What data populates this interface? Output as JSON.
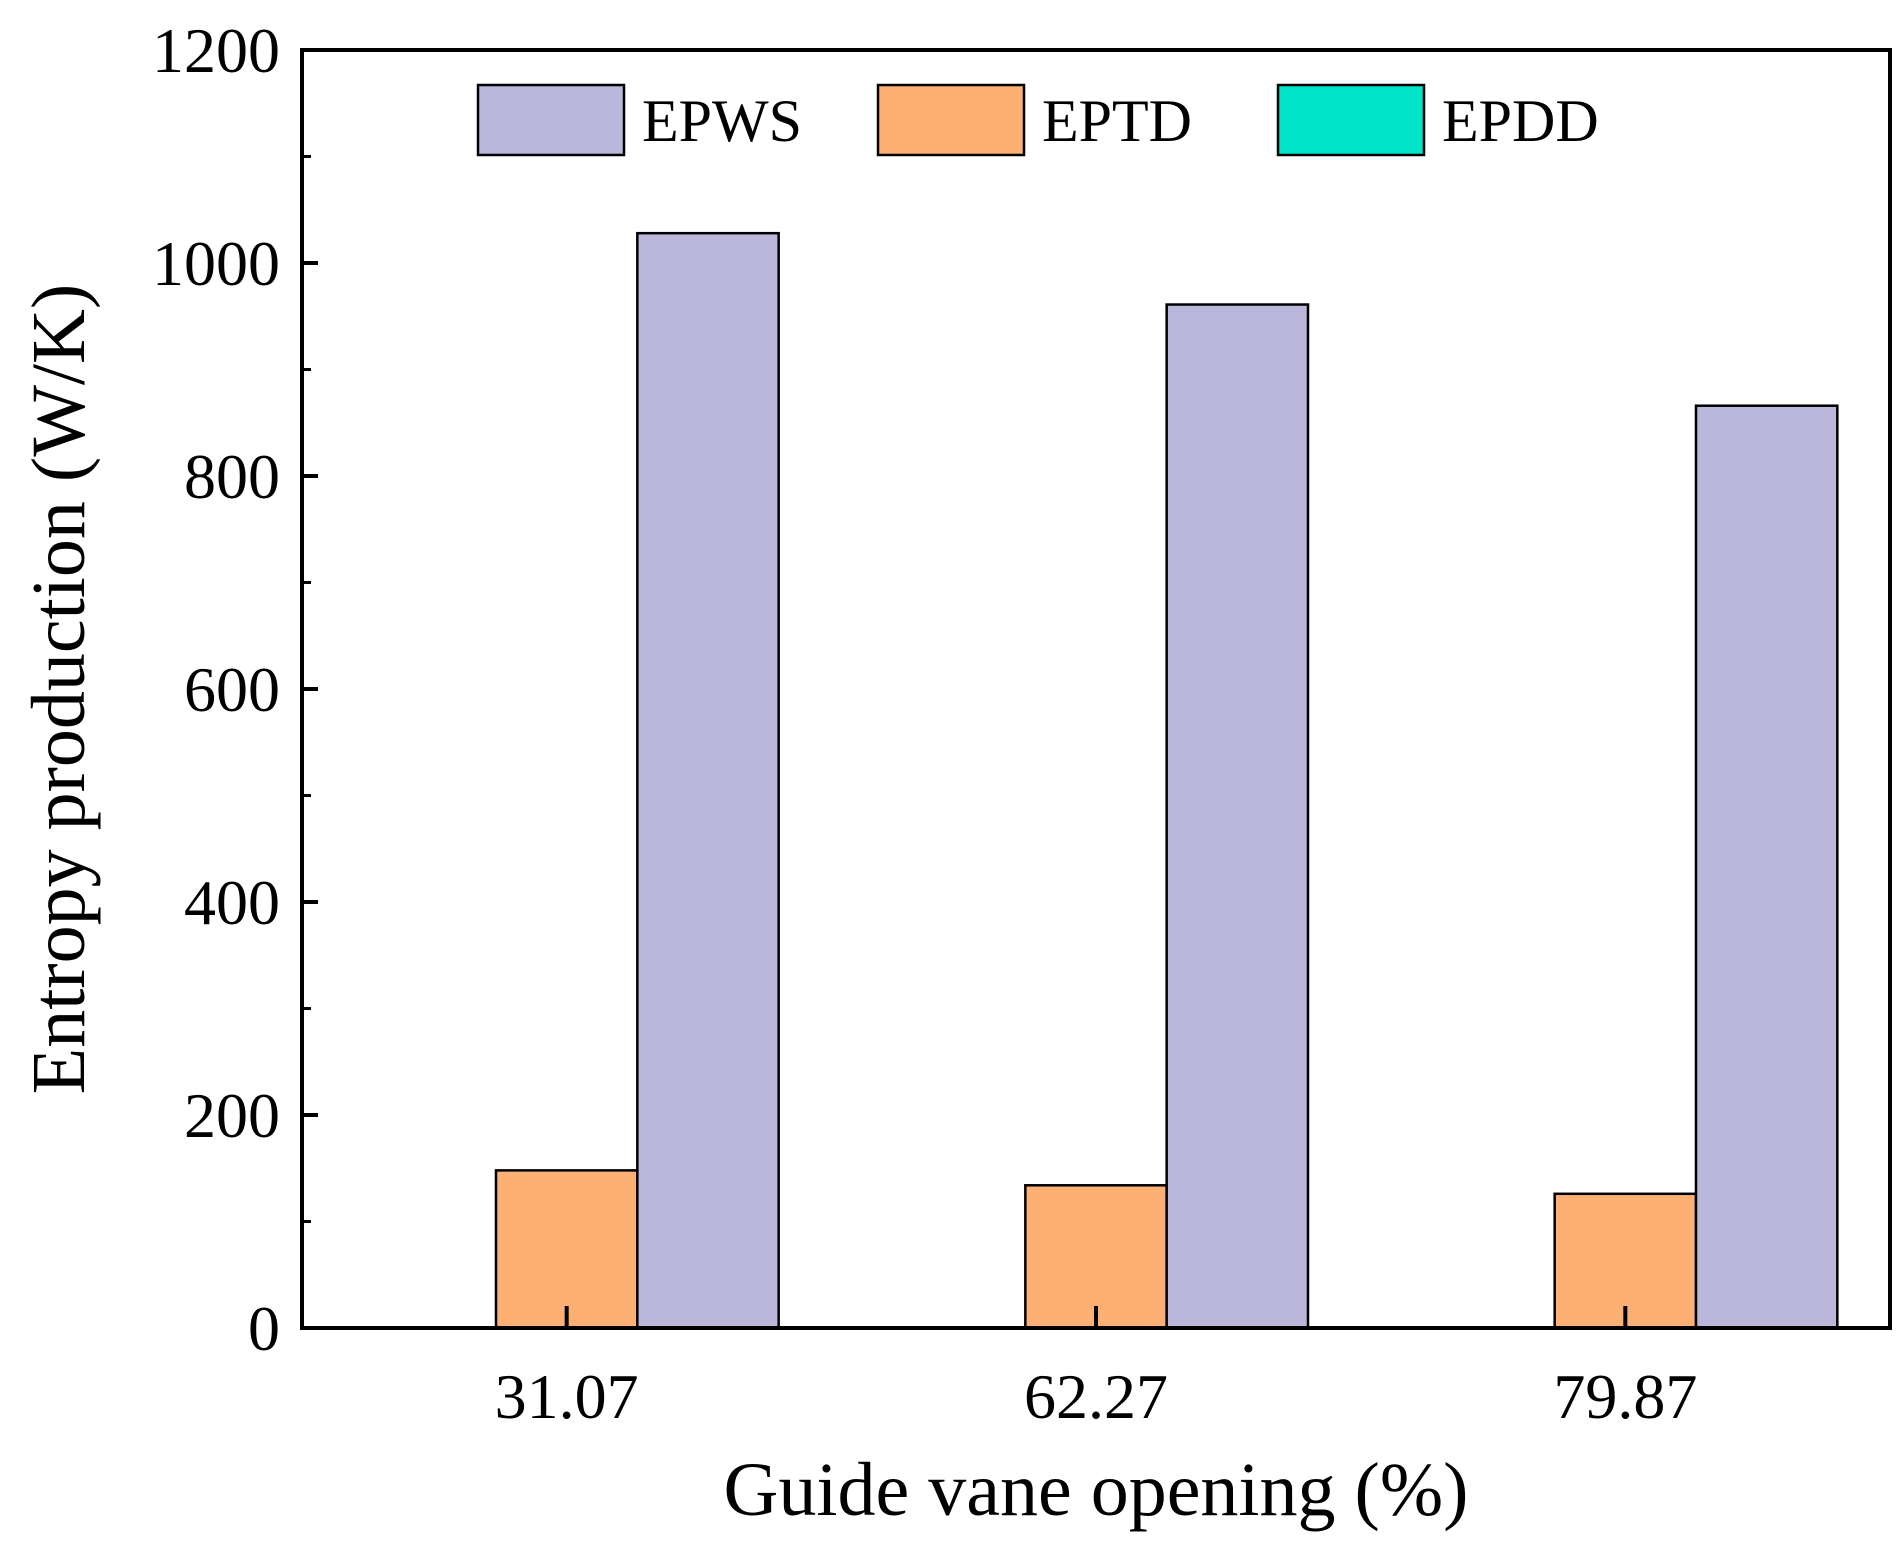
{
  "chart_data": {
    "type": "bar",
    "title": "",
    "xlabel": "Guide vane opening (%)",
    "ylabel": "Entropy production (W/K)",
    "categories": [
      "31.07",
      "62.27",
      "79.87"
    ],
    "series": [
      {
        "name": "EPDD",
        "color": "#00e5c8",
        "values": [
          0,
          0,
          0
        ]
      },
      {
        "name": "EPTD",
        "color": "#fdb074",
        "values": [
          148,
          134,
          126
        ]
      },
      {
        "name": "EPWS",
        "color": "#bab7da",
        "values": [
          1028,
          961,
          866
        ]
      }
    ],
    "legend_order": [
      "EPWS",
      "EPTD",
      "EPDD"
    ],
    "ylim": [
      0,
      1200
    ],
    "y_major_ticks": [
      0,
      200,
      400,
      600,
      800,
      1000,
      1200
    ],
    "y_minor_ticks": [
      100,
      300,
      500,
      700,
      900,
      1100
    ],
    "y_tick_labels": [
      "0",
      "200",
      "400",
      "600",
      "800",
      "1000",
      "1200"
    ],
    "grid": false,
    "legend_position": "top"
  }
}
